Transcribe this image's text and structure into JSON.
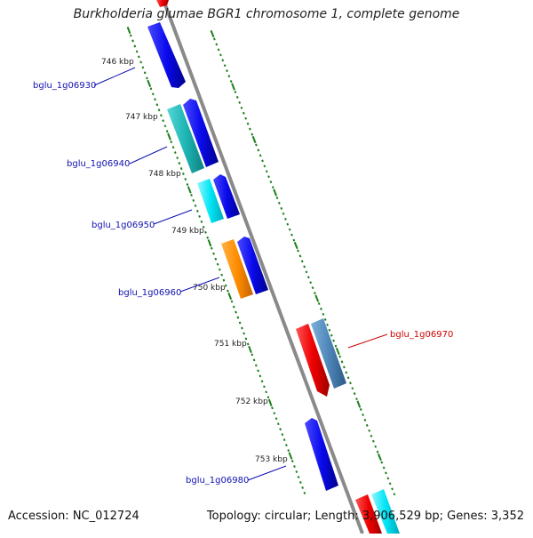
{
  "title": "Burkholderia glumae BGR1 chromosome 1, complete genome",
  "accession_text": "Accession: NC_012724",
  "info_text": "Topology: circular; Length: 3,906,529 bp; Genes: 3,352",
  "colors": {
    "backbone": "#888888",
    "tick_green": "#1a7f1a",
    "label_blue": "#1010b0",
    "label_red": "#cc0000",
    "blue": "#0a0aee",
    "teal": "#1fb5b5",
    "cyan": "#00e5f5",
    "orange": "#ff8c00",
    "red": "#ee0000",
    "steel": "#4f86b8"
  },
  "kbp_labels": [
    "746 kbp",
    "747 kbp",
    "748 kbp",
    "749 kbp",
    "750 kbp",
    "751 kbp",
    "752 kbp",
    "753 kbp"
  ],
  "gene_labels": [
    {
      "id": "bglu_1g06930",
      "color": "label_blue"
    },
    {
      "id": "bglu_1g06940",
      "color": "label_blue"
    },
    {
      "id": "bglu_1g06950",
      "color": "label_blue"
    },
    {
      "id": "bglu_1g06960",
      "color": "label_blue"
    },
    {
      "id": "bglu_1g06970",
      "color": "label_red"
    },
    {
      "id": "bglu_1g06980",
      "color": "label_blue"
    }
  ]
}
